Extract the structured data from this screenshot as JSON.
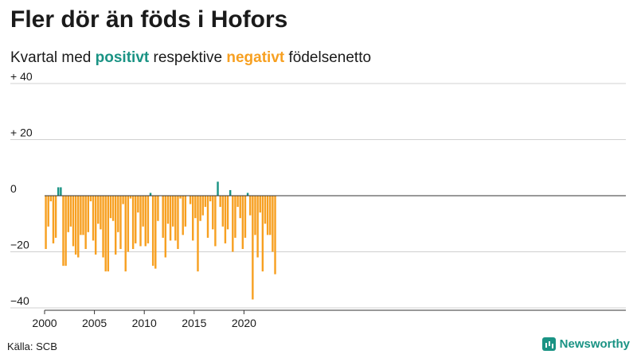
{
  "header": {
    "title": "Fler dör än föds i Hofors",
    "subtitle_pre": "Kvartal med ",
    "subtitle_pos": "positivt",
    "subtitle_mid": " respektive ",
    "subtitle_neg": "negativt",
    "subtitle_post": " födelsenetto"
  },
  "footer": {
    "source": "Källa: SCB",
    "brand": "Newsworthy"
  },
  "colors": {
    "positive": "#1a9384",
    "negative": "#f7a021",
    "grid": "#d0d0d0",
    "axis": "#333333"
  },
  "chart_data": {
    "type": "bar",
    "x_start": 2000,
    "periods_per_year": 4,
    "ylim": [
      -40,
      40
    ],
    "yticks": [
      {
        "value": 40,
        "label": "+ 40"
      },
      {
        "value": 20,
        "label": "+ 20"
      },
      {
        "value": 0,
        "label": "0"
      },
      {
        "value": -20,
        "label": "−20"
      },
      {
        "value": -40,
        "label": "−40"
      }
    ],
    "xticks": [
      {
        "value": 2000,
        "label": "2000"
      },
      {
        "value": 2005,
        "label": "2005"
      },
      {
        "value": 2010,
        "label": "2010"
      },
      {
        "value": 2015,
        "label": "2015"
      },
      {
        "value": 2020,
        "label": "2020"
      }
    ],
    "values": [
      -19,
      -11,
      -2,
      -17,
      -15,
      3,
      3,
      -25,
      -25,
      -13,
      -11,
      -18,
      -21,
      -22,
      -14,
      -14,
      -19,
      -13,
      -2,
      -16,
      -21,
      -10,
      -12,
      -22,
      -27,
      -27,
      -8,
      -9,
      -21,
      -13,
      -19,
      -3,
      -27,
      -20,
      -1,
      -19,
      -17,
      -6,
      -18,
      -11,
      -18,
      -17,
      1,
      -25,
      -26,
      -9,
      0,
      -15,
      -22,
      -10,
      -16,
      -11,
      -16,
      -19,
      -1,
      -14,
      -11,
      0,
      -3,
      -16,
      -8,
      -27,
      -9,
      -7,
      -4,
      -15,
      -2,
      -12,
      -18,
      5,
      -4,
      -11,
      -17,
      -12,
      2,
      -20,
      -15,
      -4,
      -8,
      -19,
      -15,
      1,
      -7,
      -37,
      -14,
      -22,
      -6,
      -27,
      -10,
      -14,
      -14,
      -20,
      -28
    ]
  }
}
